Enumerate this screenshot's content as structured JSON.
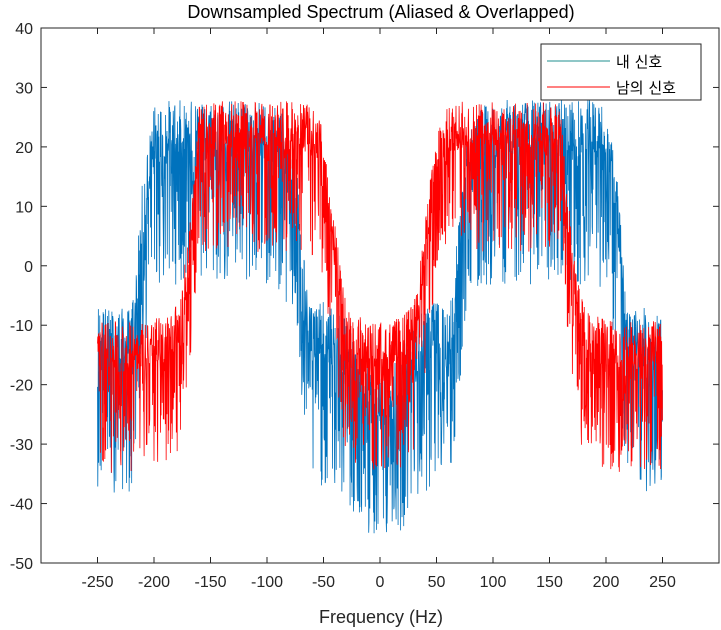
{
  "chart_data": {
    "type": "line",
    "title": "Downsampled Spectrum (Aliased & Overlapped)",
    "xlabel": "Frequency (Hz)",
    "ylabel": "",
    "xlim": [
      -300,
      300
    ],
    "ylim": [
      -50,
      40
    ],
    "xticks": [
      -250,
      -200,
      -150,
      -100,
      -50,
      0,
      50,
      100,
      150,
      200,
      250
    ],
    "yticks": [
      -50,
      -40,
      -30,
      -20,
      -10,
      0,
      10,
      20,
      30,
      40
    ],
    "grid": false,
    "legend_position": "top-right",
    "series": [
      {
        "name": "내 신호",
        "color": "#0072BD",
        "legend_color": "#1f8f8f",
        "x": [
          -250,
          -240,
          -230,
          -220,
          -215,
          -210,
          -200,
          -190,
          -180,
          -170,
          -160,
          -150,
          -130,
          -110,
          -90,
          -75,
          -70,
          -65,
          -60,
          -55,
          -50,
          -40,
          -30,
          -20,
          -10,
          0,
          10,
          20,
          30,
          40,
          50,
          55,
          60,
          65,
          70,
          75,
          90,
          110,
          130,
          150,
          160,
          170,
          180,
          190,
          200,
          210,
          215,
          220,
          230,
          240,
          250
        ],
        "values": [
          -13,
          -14,
          -14,
          -14,
          -5,
          8,
          20,
          21,
          21,
          21,
          21,
          21,
          21,
          21,
          20,
          14,
          2,
          -10,
          -13,
          -13,
          -13,
          -14,
          -16,
          -20,
          -24,
          -25,
          -24,
          -20,
          -16,
          -14,
          -13,
          -13,
          -13,
          -10,
          2,
          14,
          20,
          21,
          21,
          21,
          21,
          21,
          21,
          21,
          20,
          8,
          -5,
          -14,
          -14,
          -14,
          -13
        ],
        "noise_amplitude": 11
      },
      {
        "name": "남의 신호",
        "color": "#FF0000",
        "legend_color": "#FF0000",
        "x": [
          -250,
          -230,
          -210,
          -190,
          -180,
          -175,
          -170,
          -165,
          -160,
          -150,
          -130,
          -110,
          -90,
          -70,
          -60,
          -50,
          -45,
          -40,
          -35,
          -30,
          -20,
          -10,
          0,
          10,
          20,
          30,
          35,
          40,
          45,
          50,
          60,
          70,
          90,
          110,
          130,
          150,
          160,
          165,
          170,
          175,
          180,
          190,
          210,
          230,
          250
        ],
        "values": [
          -15,
          -15,
          -15,
          -14,
          -12,
          -8,
          0,
          8,
          21,
          22,
          22,
          22,
          22,
          22,
          21,
          18,
          10,
          2,
          -6,
          -12,
          -14,
          -15,
          -15,
          -15,
          -14,
          -12,
          -6,
          2,
          10,
          18,
          21,
          22,
          22,
          22,
          22,
          22,
          21,
          8,
          0,
          -8,
          -12,
          -14,
          -15,
          -15,
          -15
        ],
        "noise_amplitude": 9
      }
    ]
  },
  "legend": {
    "items": [
      {
        "label": "내 신호"
      },
      {
        "label": "남의 신호"
      }
    ]
  }
}
